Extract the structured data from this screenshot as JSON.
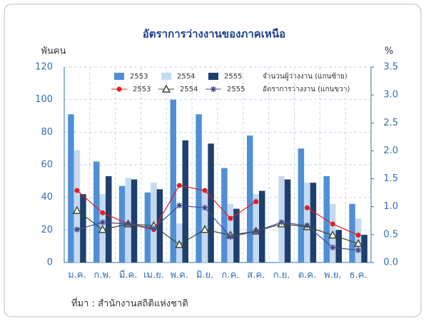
{
  "chart_data": {
    "type": "bar",
    "title": "อัตราการว่างงานของภาคเหนือ",
    "y_label": "พันคน",
    "y2_label": "%",
    "source": "ที่มา : สำนักงานสถิติแห่งชาติ",
    "bar_legend_label": "จำนวนผู้ว่างงาน (แกนซ้าย)",
    "line_legend_label": "อัตราการว่างงาน (แกนขวา)",
    "categories": [
      "ม.ค.",
      "ก.พ.",
      "มี.ค.",
      "เม.ย.",
      "พ.ค.",
      "มิ.ย.",
      "ก.ค.",
      "ส.ค.",
      "ก.ย.",
      "ต.ค.",
      "พ.ย.",
      "ธ.ค."
    ],
    "ylim": [
      0,
      120
    ],
    "yticks": [
      0,
      20,
      40,
      60,
      80,
      100,
      120
    ],
    "y2lim": [
      0,
      3.5
    ],
    "y2ticks": [
      {
        "value": 0,
        "label": "0.0"
      },
      0.5,
      {
        "value": 1,
        "label": "1.0"
      },
      1.5,
      {
        "value": 2,
        "label": "2.0"
      },
      2.5,
      {
        "value": 3,
        "label": "3.0"
      },
      3.5
    ],
    "grid": true,
    "series": [
      {
        "name": "2553",
        "kind": "bar",
        "color": "#4f8fd6",
        "values": [
          91,
          62,
          47,
          43,
          100,
          91,
          58,
          78,
          null,
          70,
          53,
          36
        ]
      },
      {
        "name": "2554",
        "kind": "bar",
        "color": "#c5d9f1",
        "values": [
          69,
          42,
          52,
          49,
          24,
          45,
          36,
          42,
          53,
          49,
          36,
          27
        ]
      },
      {
        "name": "2555",
        "kind": "bar",
        "color": "#1f3f6e",
        "values": [
          42,
          53,
          51,
          45,
          75,
          73,
          33,
          44,
          51,
          49,
          20,
          17
        ]
      },
      {
        "name": "2553",
        "kind": "line",
        "axis": "y2",
        "marker": "circle",
        "color": "#e02020",
        "values": [
          1.29,
          0.89,
          0.69,
          0.59,
          1.38,
          1.29,
          0.79,
          1.09,
          null,
          0.98,
          0.69,
          0.49
        ]
      },
      {
        "name": "2554",
        "kind": "line",
        "axis": "y2",
        "marker": "triangle",
        "color": "#3d4a2f",
        "values": [
          0.93,
          0.59,
          0.69,
          0.66,
          0.32,
          0.59,
          0.49,
          0.56,
          0.69,
          0.64,
          0.49,
          0.34
        ]
      },
      {
        "name": "2555",
        "kind": "line",
        "axis": "y2",
        "marker": "star",
        "color": "#4a4a8a",
        "values": [
          0.59,
          0.72,
          0.69,
          0.61,
          1.02,
          0.98,
          0.46,
          0.56,
          0.72,
          0.66,
          0.27,
          0.22
        ]
      }
    ]
  }
}
